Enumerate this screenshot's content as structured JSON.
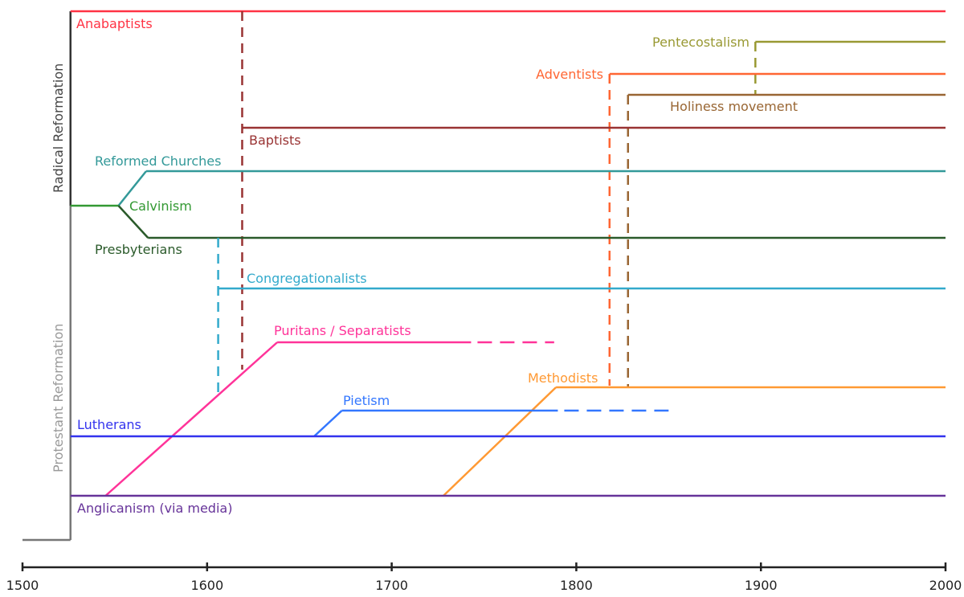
{
  "axis": {
    "min": 1500,
    "max": 2000,
    "ticks": [
      "1500",
      "1600",
      "1700",
      "1800",
      "1900",
      "2000"
    ]
  },
  "side_labels": {
    "radical": "Radical Reformation",
    "protestant": "Protestant Reformation"
  },
  "root_start_year": 1526,
  "branches": [
    {
      "id": "anabaptists",
      "label": "Anabaptists",
      "color": "#ff3344",
      "start": 1526,
      "end": 2000
    },
    {
      "id": "pentecostalism",
      "label": "Pentecostalism",
      "color": "#999933",
      "start": 1897,
      "end": 2000,
      "from": "holiness"
    },
    {
      "id": "adventists",
      "label": "Adventists",
      "color": "#ff6633",
      "start": 1818,
      "end": 2000,
      "from": "methodists"
    },
    {
      "id": "holiness",
      "label": "Holiness movement",
      "color": "#996633",
      "start": 1828,
      "end": 2000,
      "from": "methodists"
    },
    {
      "id": "baptists",
      "label": "Baptists",
      "color": "#993333",
      "start": 1619,
      "end": 2000,
      "from": "puritans"
    },
    {
      "id": "reformed",
      "label": "Reformed Churches",
      "color": "#339999",
      "start": 1552,
      "ramp_end": 1567,
      "end": 2000,
      "from": "calvinism"
    },
    {
      "id": "calvinism",
      "label": "Calvinism",
      "color": "#339933",
      "start": 1526,
      "end": 1552
    },
    {
      "id": "presbyterians",
      "label": "Presbyterians",
      "color": "#2a5a2a",
      "start": 1552,
      "ramp_end": 1568,
      "end": 2000,
      "from": "calvinism"
    },
    {
      "id": "congregationalists",
      "label": "Congregationalists",
      "color": "#33aacc",
      "start": 1606,
      "end": 2000,
      "from": "puritans"
    },
    {
      "id": "puritans",
      "label": "Puritans / Separatists",
      "color": "#ff3399",
      "start": 1545,
      "ramp_end": 1638,
      "end": 1743,
      "dashed_end": 1788,
      "from": "anglicanism"
    },
    {
      "id": "methodists",
      "label": "Methodists",
      "color": "#ff9933",
      "start": 1728,
      "ramp_end": 1789,
      "end": 2000,
      "from": "anglicanism"
    },
    {
      "id": "pietism",
      "label": "Pietism",
      "color": "#3377ff",
      "start": 1658,
      "ramp_end": 1673,
      "end": 1790,
      "dashed_end": 1850,
      "from": "lutherans"
    },
    {
      "id": "lutherans",
      "label": "Lutherans",
      "color": "#3333ee",
      "start": 1526,
      "end": 2000
    },
    {
      "id": "anglicanism",
      "label": "Anglicanism (via media)",
      "color": "#663399",
      "start": 1526,
      "end": 2000
    }
  ]
}
